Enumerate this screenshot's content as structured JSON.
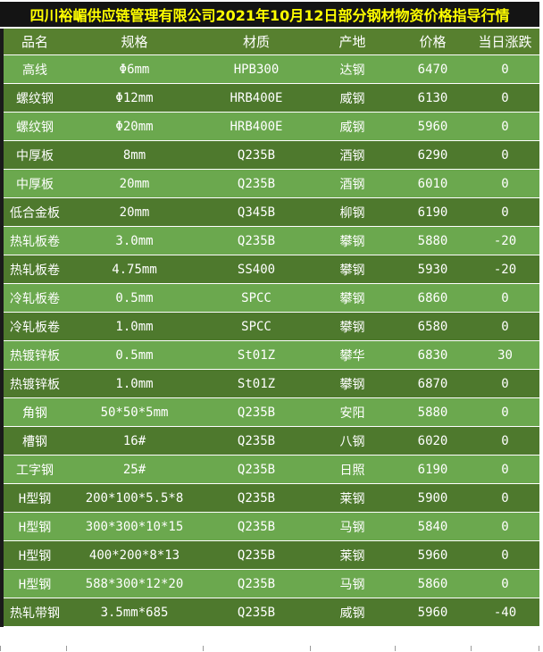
{
  "title": "四川裕嵋供应链管理有限公司2021年10月12日部分钢材物资价格指导行情",
  "colors": {
    "title_bg": "#141414",
    "title_text": "#ffff00",
    "header_bg": "#57802f",
    "row_light": "#6ba84e",
    "row_dark": "#4e792d",
    "cell_text": "#ffffff",
    "row_border": "#ffffff",
    "left_border": "#1a1a1a",
    "tick": "#9a9a9a"
  },
  "table": {
    "headers": [
      "品名",
      "规格",
      "材质",
      "产地",
      "价格",
      "当日涨跌"
    ],
    "rows": [
      [
        "高线",
        "Φ6mm",
        "HPB300",
        "达钢",
        "6470",
        "0"
      ],
      [
        "螺纹钢",
        "Φ12mm",
        "HRB400E",
        "威钢",
        "6130",
        "0"
      ],
      [
        "螺纹钢",
        "Φ20mm",
        "HRB400E",
        "威钢",
        "5960",
        "0"
      ],
      [
        "中厚板",
        "8mm",
        "Q235B",
        "酒钢",
        "6290",
        "0"
      ],
      [
        "中厚板",
        "20mm",
        "Q235B",
        "酒钢",
        "6010",
        "0"
      ],
      [
        "低合金板",
        "20mm",
        "Q345B",
        "柳钢",
        "6190",
        "0"
      ],
      [
        "热轧板卷",
        "3.0mm",
        "Q235B",
        "攀钢",
        "5880",
        "-20"
      ],
      [
        "热轧板卷",
        "4.75mm",
        "SS400",
        "攀钢",
        "5930",
        "-20"
      ],
      [
        "冷轧板卷",
        "0.5mm",
        "SPCC",
        "攀钢",
        "6860",
        "0"
      ],
      [
        "冷轧板卷",
        "1.0mm",
        "SPCC",
        "攀钢",
        "6580",
        "0"
      ],
      [
        "热镀锌板",
        "0.5mm",
        "St01Z",
        "攀华",
        "6830",
        "30"
      ],
      [
        "热镀锌板",
        "1.0mm",
        "St01Z",
        "攀钢",
        "6870",
        "0"
      ],
      [
        "角钢",
        "50*50*5mm",
        "Q235B",
        "安阳",
        "5880",
        "0"
      ],
      [
        "槽钢",
        "16#",
        "Q235B",
        "八钢",
        "6020",
        "0"
      ],
      [
        "工字钢",
        "25#",
        "Q235B",
        "日照",
        "6190",
        "0"
      ],
      [
        "H型钢",
        "200*100*5.5*8",
        "Q235B",
        "莱钢",
        "5900",
        "0"
      ],
      [
        "H型钢",
        "300*300*10*15",
        "Q235B",
        "马钢",
        "5840",
        "0"
      ],
      [
        "H型钢",
        "400*200*8*13",
        "Q235B",
        "莱钢",
        "5960",
        "0"
      ],
      [
        "H型钢",
        "588*300*12*20",
        "Q235B",
        "马钢",
        "5860",
        "0"
      ],
      [
        "热轧带钢",
        "3.5mm*685",
        "Q235B",
        "威钢",
        "5960",
        "-40"
      ]
    ]
  }
}
